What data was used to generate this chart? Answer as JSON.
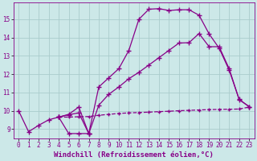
{
  "bg_color": "#cce8e8",
  "grid_color": "#aacccc",
  "line_color": "#880088",
  "xlabel": "Windchill (Refroidissement éolien,°C)",
  "xlabel_fontsize": 6.5,
  "xlim": [
    -0.5,
    23.5
  ],
  "ylim": [
    8.5,
    15.9
  ],
  "yticks": [
    9,
    10,
    11,
    12,
    13,
    14,
    15
  ],
  "xticks": [
    0,
    1,
    2,
    3,
    4,
    5,
    6,
    7,
    8,
    9,
    10,
    11,
    12,
    13,
    14,
    15,
    16,
    17,
    18,
    19,
    20,
    21,
    22,
    23
  ],
  "s1_x": [
    0,
    1,
    2,
    3,
    4,
    5,
    6,
    7
  ],
  "s1_y": [
    10.0,
    8.85,
    9.2,
    9.5,
    9.65,
    8.75,
    8.75,
    8.75
  ],
  "s2_x": [
    4,
    5,
    6,
    7,
    8,
    9,
    10,
    11,
    12,
    13,
    14,
    15,
    16,
    17,
    18,
    19,
    20,
    21,
    22,
    23
  ],
  "s2_y": [
    9.65,
    9.65,
    9.67,
    9.68,
    9.75,
    9.8,
    9.85,
    9.88,
    9.9,
    9.92,
    9.95,
    9.97,
    10.0,
    10.02,
    10.04,
    10.06,
    10.07,
    10.08,
    10.09,
    10.2
  ],
  "s3_x": [
    4,
    5,
    6,
    7,
    8,
    9,
    10,
    11,
    12,
    13,
    14,
    15,
    16,
    17,
    18,
    19,
    20,
    21,
    22,
    23
  ],
  "s3_y": [
    9.65,
    9.8,
    10.2,
    8.75,
    11.3,
    11.8,
    12.3,
    13.3,
    15.0,
    15.55,
    15.58,
    15.48,
    15.52,
    15.52,
    15.22,
    14.2,
    13.42,
    12.22,
    10.62,
    10.22
  ],
  "s4_x": [
    4,
    5,
    6,
    7,
    8,
    9,
    10,
    11,
    12,
    13,
    14,
    15,
    16,
    17,
    18,
    19,
    20,
    21,
    22,
    23
  ],
  "s4_y": [
    9.65,
    9.78,
    9.88,
    8.75,
    10.3,
    10.9,
    11.3,
    11.75,
    12.1,
    12.5,
    12.9,
    13.3,
    13.7,
    13.72,
    14.22,
    13.5,
    13.5,
    12.3,
    10.6,
    10.22
  ]
}
